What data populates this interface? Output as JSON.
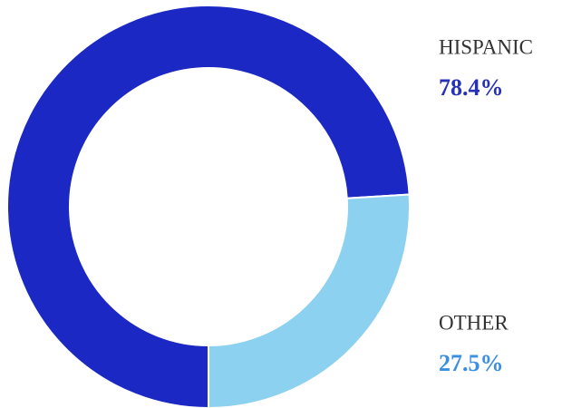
{
  "chart_data": {
    "type": "pie",
    "donut": true,
    "categories": [
      "HISPANIC",
      "OTHER"
    ],
    "values": [
      78.4,
      27.5
    ],
    "value_labels": [
      "78.4%",
      "27.5%"
    ],
    "colors": [
      "#1b28c3",
      "#8dd1f0"
    ],
    "label_colors": [
      "#2631b8",
      "#3a8fe2"
    ]
  }
}
